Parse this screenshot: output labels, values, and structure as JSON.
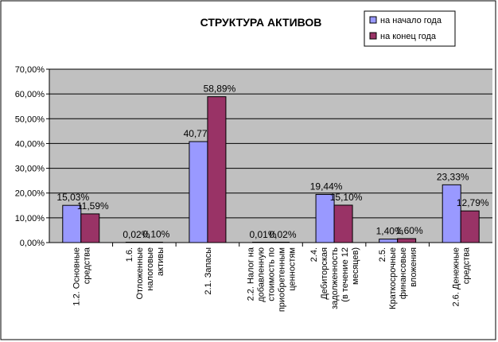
{
  "chart_data": {
    "type": "bar",
    "title": "СТРУКТУРА АКТИВОВ",
    "xlabel": "",
    "ylabel": "",
    "ylim": [
      0,
      70
    ],
    "yticks": [
      "0,00%",
      "10,00%",
      "20,00%",
      "30,00%",
      "40,00%",
      "50,00%",
      "60,00%",
      "70,00%"
    ],
    "grid": true,
    "legend_position": "top-right",
    "categories": [
      [
        "1.2. Основные",
        "средства"
      ],
      [
        "1.6.",
        "Отложенные",
        "налоговые",
        "активы"
      ],
      [
        "2.1. Запасы"
      ],
      [
        "2.2. Налог на",
        "добавленную",
        "стоимость по",
        "приобретенным",
        "ценностям"
      ],
      [
        "2.4.",
        "Дебиторская",
        "задолженность",
        "(в течение 12",
        "месяцев)"
      ],
      [
        "2.5.",
        "Краткосрочные",
        "финансовые",
        "вложения"
      ],
      [
        "2.6. Денежные",
        "средства"
      ]
    ],
    "series": [
      {
        "name": "на начало года",
        "color": "#9999ff",
        "values": [
          15.03,
          0.02,
          40.77,
          0.01,
          19.44,
          1.4,
          23.33
        ],
        "labels": [
          "15,03%",
          "0,02%",
          "40,77%",
          "0,01%",
          "19,44%",
          "1,40%",
          "23,33%"
        ]
      },
      {
        "name": "на конец года",
        "color": "#993366",
        "values": [
          11.59,
          0.1,
          58.89,
          0.02,
          15.1,
          1.6,
          12.79
        ],
        "labels": [
          "11,59%",
          "0,10%",
          "58,89%",
          "0,02%",
          "15,10%",
          "1,60%",
          "12,79%"
        ]
      }
    ]
  }
}
